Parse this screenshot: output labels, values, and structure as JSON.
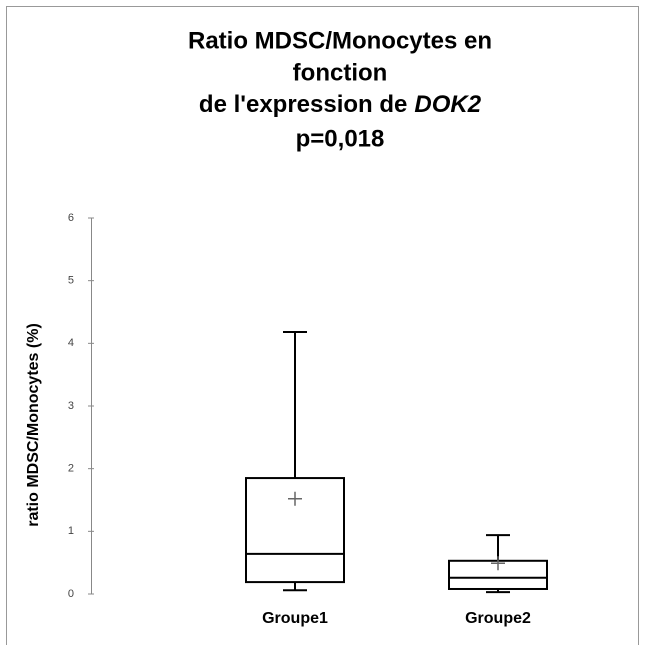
{
  "chart_data": {
    "type": "box",
    "title": [
      "Ratio MDSC/Monocytes en",
      "fonction",
      [
        "de l'expression de",
        "DOK2"
      ],
      "p=0,018"
    ],
    "y_label": "ratio MDSC/Monocytes (%)",
    "categories": [
      "Groupe1",
      "Groupe2"
    ],
    "min": [
      0.06,
      0.03
    ],
    "q1": [
      0.19,
      0.08
    ],
    "median": [
      0.64,
      0.26
    ],
    "q3": [
      1.85,
      0.53
    ],
    "max": [
      4.18,
      0.94
    ],
    "mean": [
      1.52,
      0.49
    ],
    "color": "#000000",
    "ylim": [
      0,
      6
    ],
    "yticks": [
      0,
      1,
      2,
      3,
      4,
      5,
      6
    ],
    "grid": false
  }
}
